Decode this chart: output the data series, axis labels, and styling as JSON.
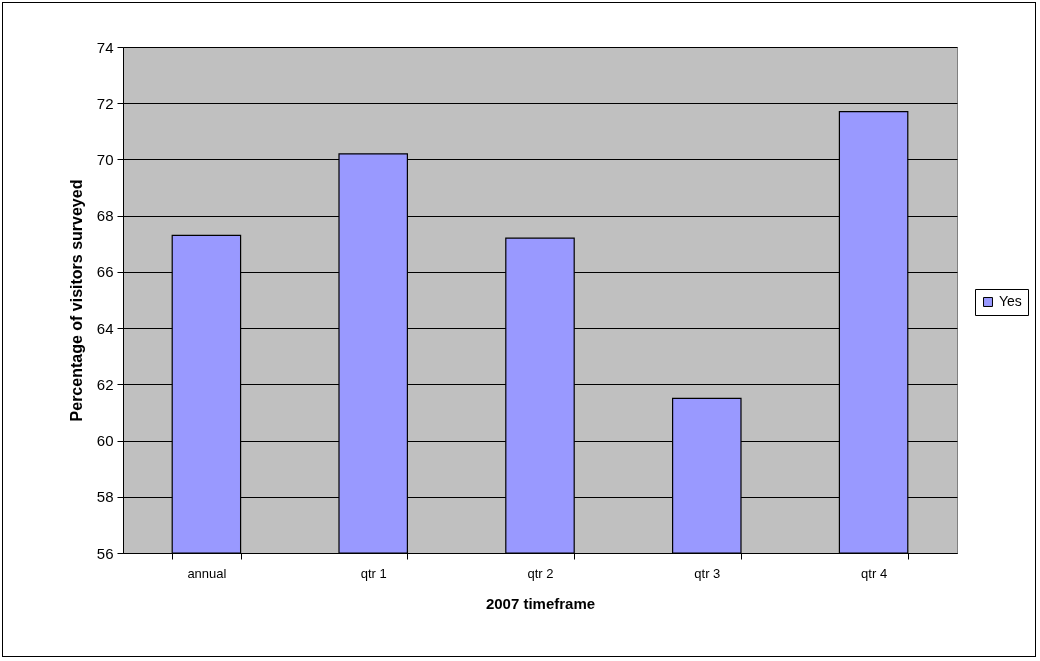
{
  "chart_data": {
    "type": "bar",
    "xlabel": "2007 timeframe",
    "ylabel": "Percentage of visitors surveyed",
    "categories": [
      "annual",
      "qtr 1",
      "qtr 2",
      "qtr 3",
      "qtr 4"
    ],
    "series": [
      {
        "name": "Yes",
        "color": "#9999ff",
        "values": [
          67.3,
          70.2,
          67.2,
          61.5,
          71.7
        ]
      }
    ],
    "ylim": [
      56,
      74
    ],
    "yticks": [
      56,
      58,
      60,
      62,
      64,
      66,
      68,
      70,
      72,
      74
    ],
    "grid": "y",
    "legend": "right"
  }
}
